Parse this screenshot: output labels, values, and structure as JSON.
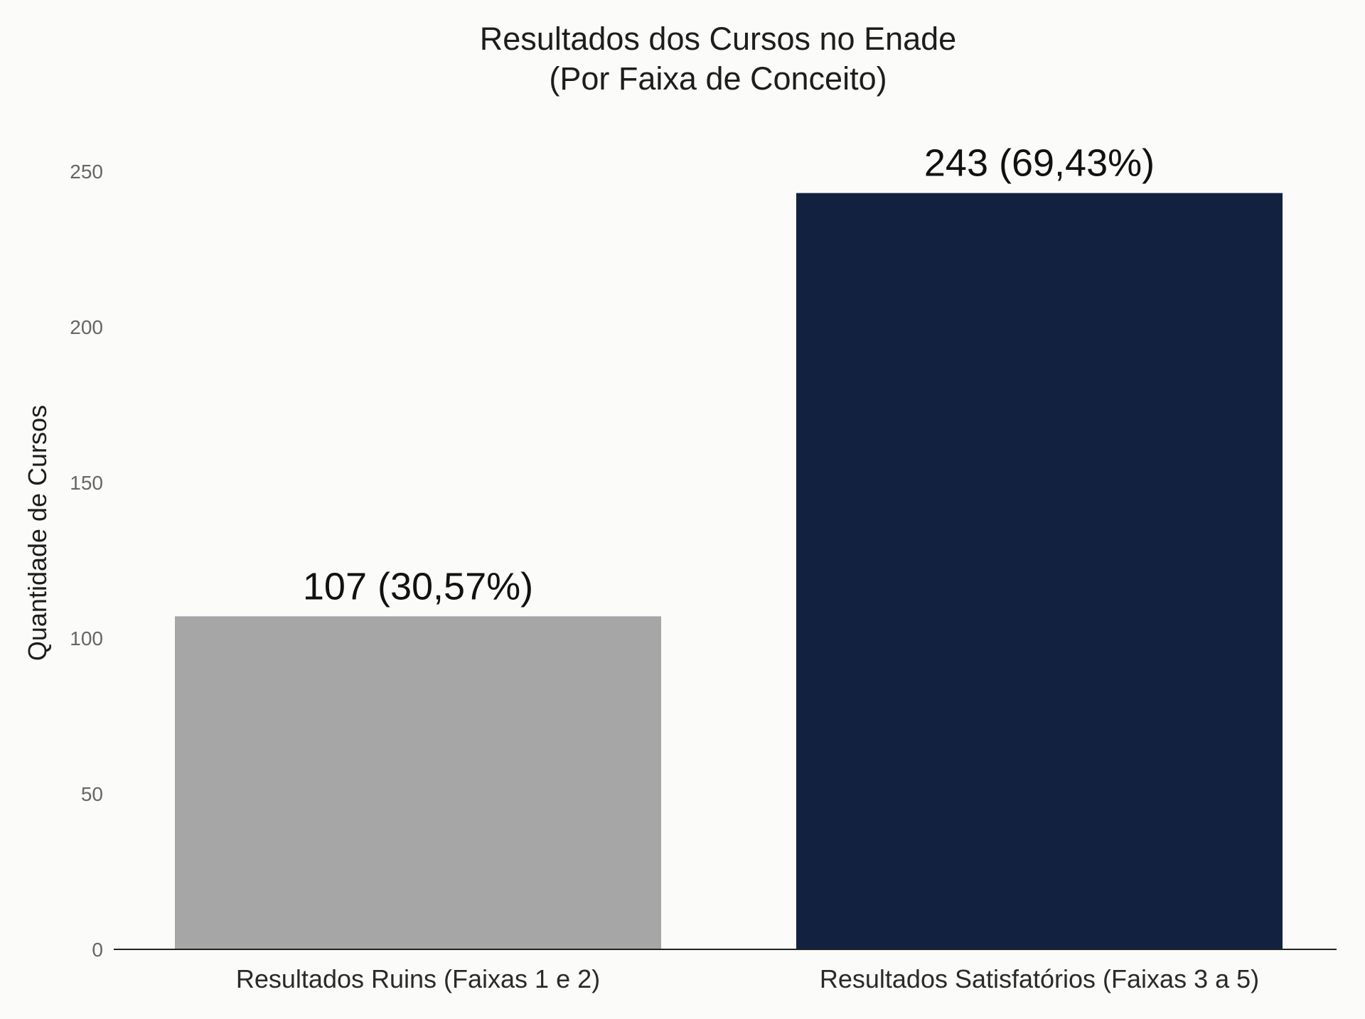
{
  "chart_data": {
    "type": "bar",
    "title": "Resultados dos Cursos no Enade",
    "subtitle": "(Por Faixa de Conceito)",
    "xlabel": "",
    "ylabel": "Quantidade de Cursos",
    "categories": [
      "Resultados Ruins (Faixas 1 e 2)",
      "Resultados Satisfatórios (Faixas 3 a 5)"
    ],
    "values": [
      107,
      243
    ],
    "data_labels": [
      "107 (30,57%)",
      "243 (69,43%)"
    ],
    "colors": [
      "#a6a6a6",
      "#12213f"
    ],
    "ylim": [
      0,
      250
    ],
    "yticks": [
      0,
      50,
      100,
      150,
      200,
      250
    ],
    "ytick_labels": [
      "0",
      "50",
      "100",
      "150",
      "200",
      "250"
    ],
    "grid": false,
    "legend": "none"
  }
}
